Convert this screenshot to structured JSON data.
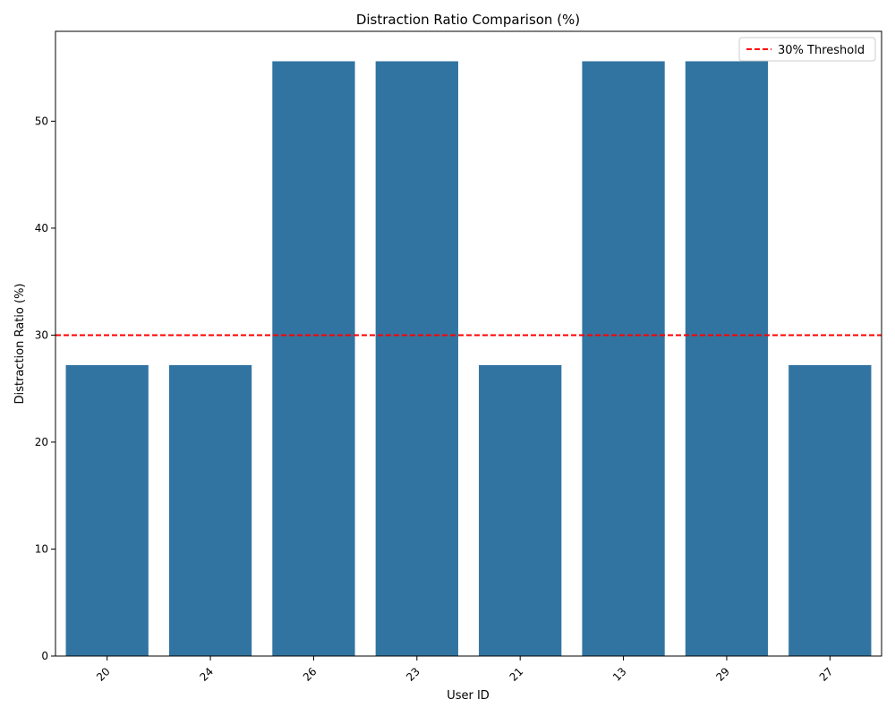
{
  "chart_data": {
    "type": "bar",
    "title": "Distraction Ratio Comparison (%)",
    "xlabel": "User ID",
    "ylabel": "Distraction Ratio (%)",
    "categories": [
      "20",
      "24",
      "26",
      "23",
      "21",
      "13",
      "29",
      "27"
    ],
    "values": [
      27.2,
      27.2,
      55.6,
      55.6,
      27.2,
      55.6,
      55.6,
      27.2
    ],
    "ylim": [
      0,
      58.4
    ],
    "yticks": [
      0,
      10,
      20,
      30,
      40,
      50
    ],
    "bar_color": "#3274a1",
    "threshold": {
      "value": 30,
      "label": "30% Threshold",
      "color": "#ff0000"
    },
    "legend_position": "top-right",
    "grid": false
  }
}
